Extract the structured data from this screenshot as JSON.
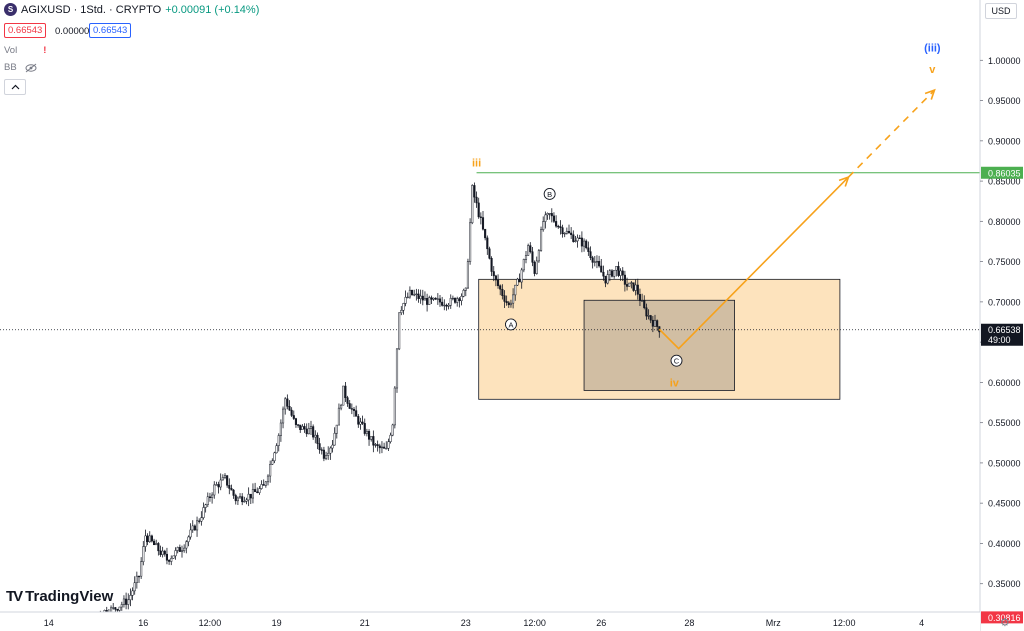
{
  "header": {
    "symbol_logo": "S",
    "title": "AGIXUSD · 1Std. · CRYPTO",
    "change": "+0.00091 (+0.14%)",
    "bid": "0.66543",
    "spread": "0.00000",
    "ask": "0.66543",
    "vol_label": "Vol",
    "vol_warning": "!",
    "bb_label": "BB",
    "eye_icon": "eye-off-icon",
    "collapse_icon": "chevron-up-icon"
  },
  "currency_button": "USD",
  "watermark": {
    "logo": "TV",
    "text": "TradingView"
  },
  "settings_icon": "gear-icon",
  "colors": {
    "candle": "#131722",
    "accent_orange": "#f7a21b",
    "accent_blue": "#2962ff",
    "resistance_green": "#4caf50",
    "support_red": "#f23645",
    "zone_fill": "#fde3bd",
    "inner_zone_fill": "#c9b79f"
  },
  "chart_data": {
    "type": "candlestick",
    "x_ticks": [
      "14",
      "16",
      "12:00",
      "19",
      "21",
      "23",
      "12:00",
      "26",
      "28",
      "Mrz",
      "12:00",
      "4"
    ],
    "y_ticks": [
      "0.35000",
      "0.40000",
      "0.45000",
      "0.50000",
      "0.55000",
      "0.60000",
      "0.65000",
      "0.70000",
      "0.75000",
      "0.80000",
      "0.85000",
      "0.90000",
      "0.95000",
      "1.00000"
    ],
    "ylim": [
      0.29,
      1.06
    ],
    "x_range_bars": [
      0,
      325
    ],
    "price_path": [
      [
        0,
        0.312
      ],
      [
        38,
        0.312
      ],
      [
        48,
        0.318
      ],
      [
        55,
        0.33
      ],
      [
        60,
        0.36
      ],
      [
        63,
        0.41
      ],
      [
        68,
        0.395
      ],
      [
        73,
        0.38
      ],
      [
        80,
        0.395
      ],
      [
        88,
        0.43
      ],
      [
        95,
        0.47
      ],
      [
        100,
        0.48
      ],
      [
        105,
        0.455
      ],
      [
        112,
        0.46
      ],
      [
        118,
        0.47
      ],
      [
        125,
        0.535
      ],
      [
        128,
        0.58
      ],
      [
        133,
        0.545
      ],
      [
        140,
        0.54
      ],
      [
        146,
        0.51
      ],
      [
        150,
        0.525
      ],
      [
        155,
        0.59
      ],
      [
        160,
        0.56
      ],
      [
        165,
        0.54
      ],
      [
        170,
        0.52
      ],
      [
        175,
        0.515
      ],
      [
        178,
        0.55
      ],
      [
        181,
        0.69
      ],
      [
        186,
        0.71
      ],
      [
        195,
        0.7
      ],
      [
        205,
        0.7
      ],
      [
        212,
        0.712
      ],
      [
        215,
        0.84
      ],
      [
        219,
        0.8
      ],
      [
        225,
        0.73
      ],
      [
        232,
        0.695
      ],
      [
        237,
        0.73
      ],
      [
        241,
        0.77
      ],
      [
        244,
        0.738
      ],
      [
        248,
        0.8
      ],
      [
        251,
        0.808
      ],
      [
        256,
        0.792
      ],
      [
        262,
        0.78
      ],
      [
        267,
        0.772
      ],
      [
        272,
        0.75
      ],
      [
        277,
        0.728
      ],
      [
        282,
        0.742
      ],
      [
        287,
        0.72
      ],
      [
        291,
        0.718
      ],
      [
        295,
        0.69
      ],
      [
        299,
        0.675
      ],
      [
        302,
        0.667
      ]
    ],
    "resistance": {
      "price": 0.86035,
      "label": "0.86035"
    },
    "support": {
      "price": 0.30816,
      "label": "0.30816"
    },
    "last_price": {
      "price": 0.66538,
      "label": "0.66538",
      "countdown": "49:00"
    },
    "zones": [
      {
        "name": "wave-iv-target-zone",
        "x": [
          218,
          386
        ],
        "y": [
          0.579,
          0.728
        ]
      },
      {
        "name": "wave-c-zone",
        "x": [
          267,
          337
        ],
        "y": [
          0.59,
          0.702
        ]
      }
    ],
    "projection": {
      "solid_path": [
        [
          302,
          0.666
        ],
        [
          311,
          0.642
        ],
        [
          390,
          0.855
        ]
      ],
      "dashed_path": [
        [
          390,
          0.855
        ],
        [
          430,
          0.963
        ]
      ]
    },
    "annotations": [
      {
        "text": "iii",
        "x": 217,
        "y": 0.873,
        "color": "#f7a21b",
        "circle": false
      },
      {
        "text": "A",
        "x": 233,
        "y": 0.672,
        "color": "#131722",
        "circle": true
      },
      {
        "text": "B",
        "x": 251,
        "y": 0.834,
        "color": "#131722",
        "circle": true
      },
      {
        "text": "C",
        "x": 310,
        "y": 0.627,
        "color": "#131722",
        "circle": true
      },
      {
        "text": "iv",
        "x": 309,
        "y": 0.6,
        "color": "#f7a21b",
        "circle": false
      },
      {
        "text": "(iii)",
        "x": 429,
        "y": 1.016,
        "color": "#2962ff",
        "circle": false
      },
      {
        "text": "v",
        "x": 429,
        "y": 0.989,
        "color": "#f7a21b",
        "circle": false
      }
    ]
  }
}
